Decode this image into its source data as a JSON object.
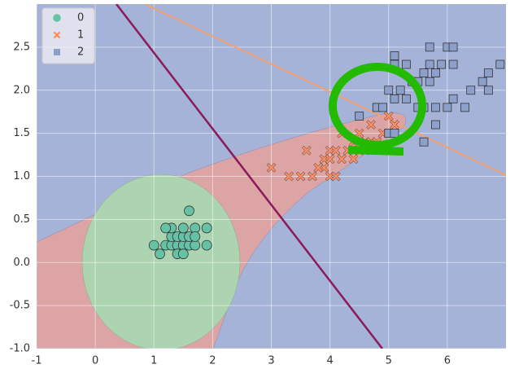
{
  "chart_data": {
    "type": "scatter",
    "xlim": [
      -1,
      7
    ],
    "ylim": [
      -1,
      3
    ],
    "xticks": [
      -1,
      0,
      1,
      2,
      3,
      4,
      5,
      6
    ],
    "yticks": [
      {
        "value": -1,
        "label": "-1.0"
      },
      -0.5,
      {
        "value": 0,
        "label": "0.0"
      },
      0.5,
      {
        "value": 1,
        "label": "1.0"
      },
      1.5,
      {
        "value": 2,
        "label": "2.0"
      },
      2.5
    ],
    "grid": true,
    "legend": "upper left",
    "series": [
      {
        "name": "0",
        "color": "#66c2a5",
        "marker": "circle",
        "x": [
          1.0,
          1.1,
          1.2,
          1.3,
          1.4,
          1.5,
          1.6,
          1.7,
          1.9,
          1.3,
          1.4,
          1.5,
          1.6,
          1.3,
          1.5,
          1.7,
          1.9,
          1.6,
          1.4,
          1.5,
          1.7,
          1.2
        ],
        "values": [
          0.2,
          0.1,
          0.2,
          0.2,
          0.2,
          0.2,
          0.2,
          0.2,
          0.2,
          0.3,
          0.3,
          0.3,
          0.3,
          0.4,
          0.4,
          0.4,
          0.4,
          0.6,
          0.1,
          0.1,
          0.3,
          0.4
        ]
      },
      {
        "name": "1",
        "color": "#fc8d62",
        "marker": "x",
        "x": [
          3.0,
          3.3,
          3.5,
          3.6,
          3.7,
          3.9,
          3.9,
          4.0,
          4.0,
          4.1,
          4.1,
          4.2,
          4.2,
          4.3,
          4.4,
          4.5,
          4.5,
          4.6,
          4.7,
          4.7,
          4.8,
          4.9,
          5.0,
          5.1,
          3.8,
          4.6,
          4.8,
          4.4,
          4.0,
          4.4
        ],
        "values": [
          1.1,
          1.0,
          1.0,
          1.3,
          1.0,
          1.1,
          1.2,
          1.0,
          1.3,
          1.0,
          1.3,
          1.2,
          1.5,
          1.3,
          1.4,
          1.5,
          1.3,
          1.4,
          1.4,
          1.6,
          1.8,
          1.5,
          1.7,
          1.6,
          1.1,
          1.3,
          1.4,
          1.2,
          1.2,
          1.3
        ]
      },
      {
        "name": "2",
        "color": "#8da0cb",
        "marker": "square",
        "x": [
          4.5,
          4.8,
          4.9,
          5.0,
          5.0,
          5.1,
          5.1,
          5.1,
          5.1,
          5.2,
          5.3,
          5.4,
          5.5,
          5.5,
          5.6,
          5.6,
          5.7,
          5.7,
          5.8,
          5.8,
          5.9,
          6.0,
          6.0,
          6.1,
          6.3,
          6.4,
          6.6,
          6.7,
          6.9,
          5.6,
          6.7,
          6.1,
          5.3,
          5.8,
          6.1,
          5.7
        ],
        "values": [
          1.7,
          1.8,
          1.8,
          1.5,
          2.0,
          1.5,
          1.9,
          2.3,
          2.4,
          2.0,
          1.9,
          2.1,
          1.8,
          2.1,
          1.4,
          2.2,
          2.1,
          2.3,
          1.6,
          2.2,
          2.3,
          1.8,
          2.5,
          2.3,
          1.8,
          2.0,
          2.1,
          2.2,
          2.3,
          1.8,
          2.0,
          1.9,
          2.3,
          1.8,
          2.5,
          2.5
        ]
      }
    ]
  }
}
